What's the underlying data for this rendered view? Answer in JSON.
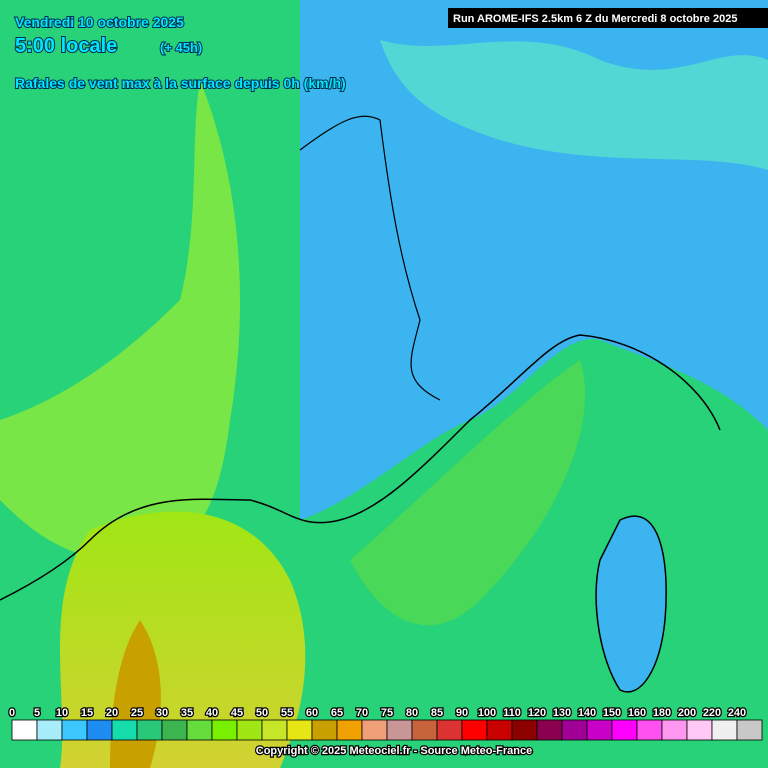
{
  "header": {
    "date": "Vendredi 10 octobre 2025",
    "time": "5:00 locale",
    "offset": "(+ 45h)",
    "subtitle": "Rafales de vent max à la surface depuis 0h (km/h)",
    "run": "Run AROME-IFS 2.5km 6 Z du Mercredi 8 octobre 2025"
  },
  "legend": {
    "items": [
      {
        "label": "0",
        "color": "#ffffff"
      },
      {
        "label": "5",
        "color": "#a8eefa"
      },
      {
        "label": "10",
        "color": "#3cc8ff"
      },
      {
        "label": "15",
        "color": "#1e8cf0"
      },
      {
        "label": "20",
        "color": "#14dcaa"
      },
      {
        "label": "25",
        "color": "#28c878"
      },
      {
        "label": "30",
        "color": "#3cb450"
      },
      {
        "label": "35",
        "color": "#64dc3c"
      },
      {
        "label": "40",
        "color": "#78f000"
      },
      {
        "label": "45",
        "color": "#a0e614"
      },
      {
        "label": "50",
        "color": "#c8e628"
      },
      {
        "label": "55",
        "color": "#e6e614"
      },
      {
        "label": "60",
        "color": "#c8a000"
      },
      {
        "label": "65",
        "color": "#f0a000"
      },
      {
        "label": "70",
        "color": "#f0a078"
      },
      {
        "label": "75",
        "color": "#c89696"
      },
      {
        "label": "80",
        "color": "#c8643c"
      },
      {
        "label": "85",
        "color": "#dc3232"
      },
      {
        "label": "90",
        "color": "#ff0000"
      },
      {
        "label": "100",
        "color": "#c80000"
      },
      {
        "label": "110",
        "color": "#8c0000"
      },
      {
        "label": "120",
        "color": "#8c0050"
      },
      {
        "label": "130",
        "color": "#a00096"
      },
      {
        "label": "140",
        "color": "#c800c8"
      },
      {
        "label": "150",
        "color": "#ff00ff"
      },
      {
        "label": "160",
        "color": "#ff50f0"
      },
      {
        "label": "180",
        "color": "#ff96f0"
      },
      {
        "label": "200",
        "color": "#ffc8f5"
      },
      {
        "label": "220",
        "color": "#f0f0f0"
      },
      {
        "label": "240",
        "color": "#c8c8c8"
      }
    ]
  },
  "footer": {
    "copyright": "Copyright © 2025 Meteociel.fr - Source Meteo-France"
  }
}
